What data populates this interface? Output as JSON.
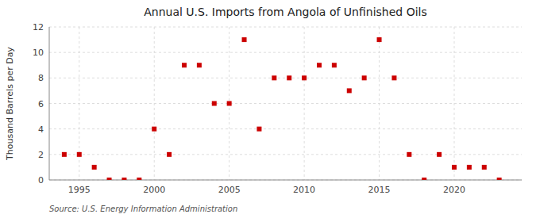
{
  "chart_data": {
    "type": "scatter",
    "title": "Annual U.S. Imports from Angola of Unfinished Oils",
    "ylabel": "Thousand Barrels per Day",
    "source": "Source: U.S. Energy Information Administration",
    "x": [
      1994,
      1995,
      1996,
      1997,
      1998,
      1999,
      2000,
      2001,
      2002,
      2003,
      2004,
      2005,
      2006,
      2007,
      2008,
      2009,
      2010,
      2011,
      2012,
      2013,
      2014,
      2015,
      2016,
      2017,
      2018,
      2019,
      2020,
      2021,
      2022,
      2023
    ],
    "values": [
      2,
      2,
      1,
      0,
      0,
      0,
      4,
      2,
      9,
      9,
      6,
      6,
      11,
      4,
      8,
      8,
      8,
      9,
      9,
      7,
      8,
      11,
      8,
      2,
      0,
      2,
      1,
      1,
      1,
      0
    ],
    "color": "#cc0000",
    "marker": "square",
    "xlim": [
      1993,
      2024.5
    ],
    "ylim": [
      0,
      12
    ],
    "xticks": [
      1995,
      2000,
      2005,
      2010,
      2015,
      2020
    ],
    "yticks": [
      0,
      2,
      4,
      6,
      8,
      10,
      12
    ],
    "grid": true
  }
}
